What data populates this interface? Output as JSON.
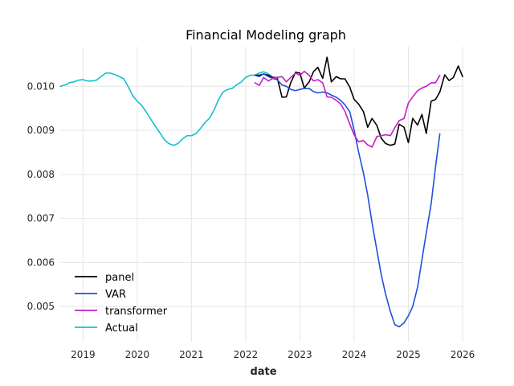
{
  "chart_data": {
    "type": "line",
    "title": "Financial Modeling graph",
    "xlabel": "date",
    "ylabel": "",
    "xlim": [
      2018.58,
      2026.0
    ],
    "ylim": [
      0.0042,
      0.0109
    ],
    "x_ticks": [
      2019,
      2020,
      2021,
      2022,
      2023,
      2024,
      2025,
      2026
    ],
    "x_tick_labels": [
      "2019",
      "2020",
      "2021",
      "2022",
      "2023",
      "2024",
      "2025",
      "2026"
    ],
    "y_ticks": [
      0.005,
      0.006,
      0.007,
      0.008,
      0.009,
      0.01
    ],
    "y_tick_labels": [
      "0.005",
      "0.006",
      "0.007",
      "0.008",
      "0.009",
      "0.010"
    ],
    "grid": true,
    "legend": "lower-left",
    "series": [
      {
        "name": "Actual",
        "color": "#17becf",
        "x": [
          2018.58,
          2018.67,
          2018.75,
          2018.83,
          2018.92,
          2019.0,
          2019.08,
          2019.17,
          2019.25,
          2019.33,
          2019.42,
          2019.5,
          2019.58,
          2019.67,
          2019.75,
          2019.83,
          2019.92,
          2020.0,
          2020.08,
          2020.17,
          2020.25,
          2020.33,
          2020.42,
          2020.5,
          2020.58,
          2020.67,
          2020.75,
          2020.83,
          2020.92,
          2021.0,
          2021.08,
          2021.17,
          2021.25,
          2021.33,
          2021.42,
          2021.5,
          2021.58,
          2021.67,
          2021.75,
          2021.83,
          2021.92,
          2022.0,
          2022.08,
          2022.17,
          2022.25,
          2022.33,
          2022.42,
          2022.5
        ],
        "values": [
          0.01,
          0.01003,
          0.01008,
          0.0101,
          0.01014,
          0.01015,
          0.01012,
          0.01012,
          0.01014,
          0.01022,
          0.0103,
          0.0103,
          0.01027,
          0.01022,
          0.01017,
          0.01,
          0.00978,
          0.00966,
          0.00957,
          0.00941,
          0.00925,
          0.0091,
          0.00894,
          0.00879,
          0.0087,
          0.00866,
          0.0087,
          0.0088,
          0.00888,
          0.00888,
          0.00892,
          0.00905,
          0.00918,
          0.00927,
          0.00947,
          0.0097,
          0.00987,
          0.00993,
          0.00995,
          0.01003,
          0.0101,
          0.0102,
          0.01025,
          0.01025,
          0.0103,
          0.01033,
          0.01028,
          0.0102
        ]
      },
      {
        "name": "panel",
        "color": "#000000",
        "x": [
          2022.17,
          2022.25,
          2022.33,
          2022.42,
          2022.5,
          2022.58,
          2022.67,
          2022.75,
          2022.83,
          2022.92,
          2023.0,
          2023.08,
          2023.17,
          2023.25,
          2023.33,
          2023.42,
          2023.5,
          2023.58,
          2023.67,
          2023.75,
          2023.83,
          2023.92,
          2024.0,
          2024.08,
          2024.17,
          2024.25,
          2024.33,
          2024.42,
          2024.5,
          2024.58,
          2024.67,
          2024.75,
          2024.83,
          2024.92,
          2025.0,
          2025.08,
          2025.17,
          2025.25,
          2025.33,
          2025.42,
          2025.5,
          2025.58,
          2025.67,
          2025.75,
          2025.83,
          2025.92,
          2026.0
        ],
        "values": [
          0.01025,
          0.01025,
          0.01028,
          0.01025,
          0.0102,
          0.0102,
          0.00975,
          0.00976,
          0.01008,
          0.01032,
          0.0103,
          0.00996,
          0.0101,
          0.01033,
          0.01043,
          0.01018,
          0.01066,
          0.0101,
          0.01022,
          0.01017,
          0.01017,
          0.00998,
          0.0097,
          0.0096,
          0.00943,
          0.00907,
          0.00927,
          0.00911,
          0.00882,
          0.0087,
          0.00866,
          0.00869,
          0.00914,
          0.00907,
          0.00872,
          0.00927,
          0.00912,
          0.00936,
          0.00893,
          0.00966,
          0.0097,
          0.00987,
          0.01026,
          0.01013,
          0.0102,
          0.01046,
          0.01022
        ]
      },
      {
        "name": "VAR",
        "color": "#1f4fdd",
        "x": [
          2022.17,
          2022.25,
          2022.33,
          2022.42,
          2022.5,
          2022.58,
          2022.67,
          2022.75,
          2022.83,
          2022.92,
          2023.0,
          2023.08,
          2023.17,
          2023.25,
          2023.33,
          2023.42,
          2023.5,
          2023.58,
          2023.67,
          2023.75,
          2023.83,
          2023.92,
          2024.0,
          2024.08,
          2024.17,
          2024.25,
          2024.33,
          2024.42,
          2024.5,
          2024.58,
          2024.67,
          2024.75,
          2024.83,
          2024.92,
          2025.0,
          2025.08,
          2025.17,
          2025.25,
          2025.33,
          2025.42,
          2025.5,
          2025.58
        ],
        "values": [
          0.01025,
          0.01022,
          0.01028,
          0.01022,
          0.01018,
          0.01015,
          0.01003,
          0.01,
          0.00993,
          0.0099,
          0.00993,
          0.00995,
          0.00995,
          0.00988,
          0.00985,
          0.00987,
          0.00985,
          0.0098,
          0.00975,
          0.00968,
          0.00958,
          0.00942,
          0.009,
          0.00852,
          0.00804,
          0.00753,
          0.0069,
          0.00627,
          0.00572,
          0.00528,
          0.00488,
          0.00459,
          0.00454,
          0.00463,
          0.00479,
          0.005,
          0.00544,
          0.00606,
          0.00667,
          0.00733,
          0.00816,
          0.00892
        ]
      },
      {
        "name": "transformer",
        "color": "#c51fc5",
        "x": [
          2022.17,
          2022.25,
          2022.33,
          2022.42,
          2022.5,
          2022.58,
          2022.67,
          2022.75,
          2022.83,
          2022.92,
          2023.0,
          2023.08,
          2023.17,
          2023.25,
          2023.33,
          2023.42,
          2023.5,
          2023.58,
          2023.67,
          2023.75,
          2023.83,
          2023.92,
          2024.0,
          2024.08,
          2024.17,
          2024.25,
          2024.33,
          2024.42,
          2024.5,
          2024.58,
          2024.67,
          2024.75,
          2024.83,
          2024.92,
          2025.0,
          2025.08,
          2025.17,
          2025.25,
          2025.33,
          2025.42,
          2025.5,
          2025.58
        ],
        "values": [
          0.01008,
          0.01002,
          0.0102,
          0.01012,
          0.01018,
          0.0102,
          0.01022,
          0.0101,
          0.0102,
          0.0103,
          0.01025,
          0.01034,
          0.01025,
          0.01012,
          0.01015,
          0.01008,
          0.00976,
          0.00975,
          0.00968,
          0.0096,
          0.00943,
          0.00914,
          0.0089,
          0.00874,
          0.00877,
          0.00867,
          0.00862,
          0.00886,
          0.00888,
          0.0089,
          0.00888,
          0.00906,
          0.00922,
          0.00927,
          0.00962,
          0.00976,
          0.0099,
          0.00996,
          0.01,
          0.01008,
          0.01008,
          0.01025
        ]
      }
    ]
  }
}
